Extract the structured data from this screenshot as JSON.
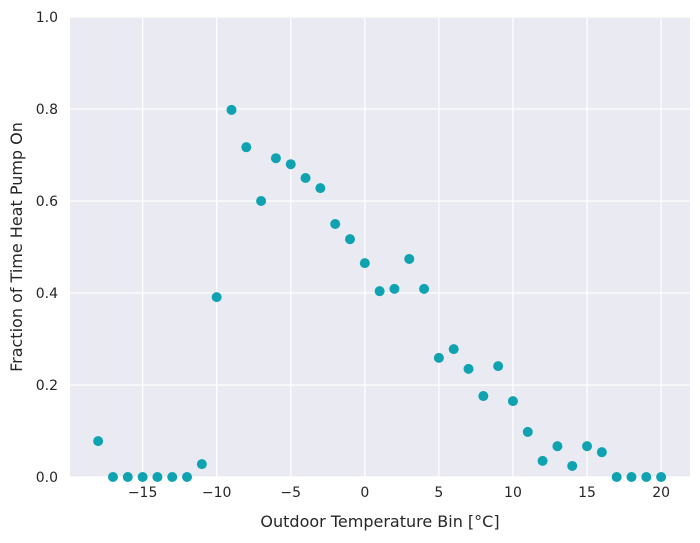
{
  "chart_data": {
    "type": "scatter",
    "title": "",
    "xlabel": "Outdoor Temperature Bin [°C]",
    "ylabel": "Fraction of Time Heat Pump On",
    "xlim": [
      -19.9,
      21.95
    ],
    "ylim": [
      0,
      1
    ],
    "grid": true,
    "xticks": [
      -15,
      -10,
      -5,
      0,
      5,
      10,
      15,
      20
    ],
    "xtick_labels": [
      "−15",
      "−10",
      "−5",
      "0",
      "5",
      "10",
      "15",
      "20"
    ],
    "yticks": [
      0,
      0.2,
      0.4,
      0.6,
      0.8,
      1.0
    ],
    "ytick_labels": [
      "0.0",
      "0.2",
      "0.4",
      "0.6",
      "0.8",
      "1.0"
    ],
    "marker_color": "#0fa3b1",
    "background_color": "#eaeaf2",
    "x": [
      -18,
      -17,
      -16,
      -15,
      -14,
      -13,
      -12,
      -11,
      -10,
      -9,
      -8,
      -7,
      -6,
      -5,
      -4,
      -3,
      -2,
      -1,
      0,
      1,
      2,
      3,
      4,
      5,
      6,
      7,
      8,
      9,
      10,
      11,
      12,
      13,
      14,
      15,
      16,
      17,
      18,
      19,
      20
    ],
    "y": [
      0.078,
      0,
      0,
      0,
      0,
      0,
      0,
      0.028,
      0.391,
      0.798,
      0.717,
      0.6,
      0.693,
      0.68,
      0.65,
      0.628,
      0.55,
      0.517,
      0.465,
      0.404,
      0.409,
      0.474,
      0.409,
      0.259,
      0.278,
      0.235,
      0.176,
      0.241,
      0.165,
      0.098,
      0.035,
      0.067,
      0.024,
      0.067,
      0.054,
      0,
      0,
      0,
      0
    ]
  }
}
